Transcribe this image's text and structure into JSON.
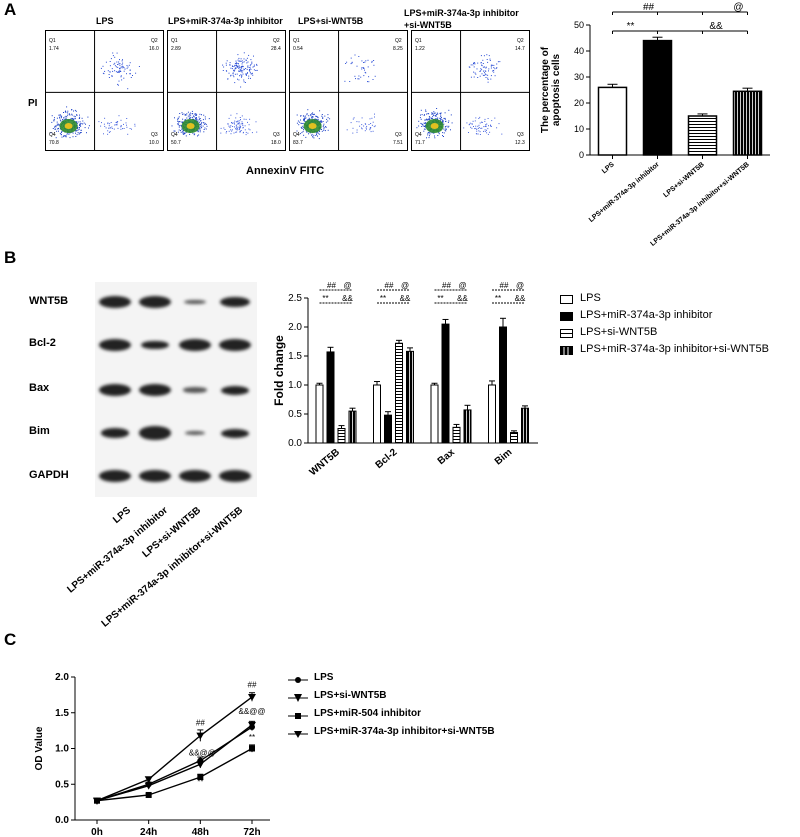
{
  "panels": {
    "A": "A",
    "B": "B",
    "C": "C"
  },
  "panel_a": {
    "flow_groups": [
      "LPS",
      "LPS+miR-374a-3p inhibitor",
      "LPS+si-WNT5B",
      "LPS+miR-374a-3p inhibitor\n+si-WNT5B"
    ],
    "flow_y_label": "PI",
    "flow_x_label": "AnnexinV FITC",
    "quadrant_values": [
      {
        "q1": "1.74",
        "q2": "16.0",
        "q4": "70.8",
        "q3": "10.0"
      },
      {
        "q1": "2.89",
        "q2": "28.4",
        "q4": "50.7",
        "q3": "18.0"
      },
      {
        "q1": "0.54",
        "q2": "8.25",
        "q4": "83.7",
        "q3": "7.51"
      },
      {
        "q1": "1.22",
        "q2": "14.7",
        "q4": "71.7",
        "q3": "12.3"
      }
    ]
  },
  "panel_b": {
    "blot_rows": [
      "WNT5B",
      "Bcl-2",
      "Bax",
      "Bim",
      "GAPDH"
    ],
    "blot_lanes": [
      "LPS",
      "LPS+miR-374a-3p inhibitor",
      "LPS+si-WNT5B",
      "LPS+miR-374a-3p inhibitor+si-WNT5B"
    ]
  },
  "chart_data": [
    {
      "type": "bar",
      "ylabel": "The percentage of\napoptosis cells",
      "categories": [
        "LPS",
        "LPS+miR-374a-3p inhibitor",
        "LPS+si-WNT5B",
        "LPS+miR-374a-3p inhibitor+si-WNT5B"
      ],
      "values": [
        26,
        44,
        15,
        24.5
      ],
      "errors": [
        1.2,
        1.3,
        0.8,
        1.2
      ],
      "ylim": [
        0,
        50
      ],
      "yticks": [
        0,
        10,
        20,
        30,
        40,
        50
      ],
      "annotations": {
        "star": "**",
        "hash": "##",
        "amp": "&&",
        "at": "@"
      }
    },
    {
      "type": "bar",
      "ylabel": "Fold change",
      "categories": [
        "WNT5B",
        "Bcl-2",
        "Bax",
        "Bim"
      ],
      "series": [
        {
          "name": "LPS",
          "values": [
            1.0,
            1.0,
            1.0,
            1.0
          ],
          "errors": [
            0.03,
            0.06,
            0.03,
            0.07
          ]
        },
        {
          "name": "LPS+miR-374a-3p inhibitor",
          "values": [
            1.57,
            0.48,
            2.05,
            2.0
          ],
          "errors": [
            0.08,
            0.06,
            0.08,
            0.15
          ]
        },
        {
          "name": "LPS+si-WNT5B",
          "values": [
            0.25,
            1.72,
            0.27,
            0.18
          ],
          "errors": [
            0.05,
            0.05,
            0.05,
            0.03
          ]
        },
        {
          "name": "LPS+miR-374a-3p inhibitor+si-WNT5B",
          "values": [
            0.55,
            1.58,
            0.57,
            0.6
          ],
          "errors": [
            0.05,
            0.06,
            0.08,
            0.04
          ]
        }
      ],
      "ylim": [
        0,
        2.5
      ],
      "yticks": [
        "0.0",
        "0.5",
        "1.0",
        "1.5",
        "2.0",
        "2.5"
      ],
      "annotations": {
        "star": "**",
        "hash": "##",
        "amp": "&&",
        "at": "@"
      }
    },
    {
      "type": "line",
      "ylabel": "OD Value",
      "x": [
        "0h",
        "24h",
        "48h",
        "72h"
      ],
      "series": [
        {
          "name": "LPS",
          "values": [
            0.27,
            0.5,
            0.83,
            1.3
          ],
          "errors": [
            0.02,
            0.03,
            0.05,
            0.05
          ]
        },
        {
          "name": "LPS+si-WNT5B",
          "values": [
            0.27,
            0.57,
            1.18,
            1.72
          ],
          "errors": [
            0.02,
            0.03,
            0.08,
            0.06
          ]
        },
        {
          "name": "LPS+miR-504 inhibitor",
          "values": [
            0.27,
            0.35,
            0.6,
            1.0
          ],
          "errors": [
            0.02,
            0.02,
            0.04,
            0.05
          ]
        },
        {
          "name": "LPS+miR-374a-3p inhibitor+si-WNT5B",
          "values": [
            0.27,
            0.48,
            0.78,
            1.33
          ],
          "errors": [
            0.02,
            0.03,
            0.05,
            0.05
          ]
        }
      ],
      "ylim": [
        0,
        2.0
      ],
      "yticks": [
        "0.0",
        "0.5",
        "1.0",
        "1.5",
        "2.0"
      ],
      "annotations": {
        "hash": "##",
        "ampat": "&&@@",
        "star": "**"
      }
    }
  ]
}
